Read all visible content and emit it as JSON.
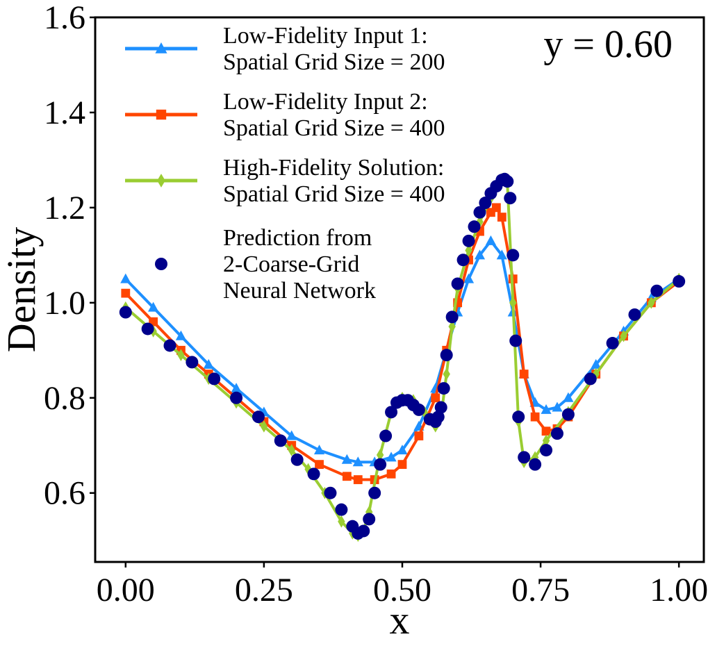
{
  "chart_data": {
    "type": "line",
    "xlabel": "x",
    "ylabel": "Density",
    "xlim": [
      -0.055,
      1.045
    ],
    "ylim": [
      0.455,
      1.6
    ],
    "xticks": [
      0.0,
      0.25,
      0.5,
      0.75,
      1.0
    ],
    "xtick_labels": [
      "0.00",
      "0.25",
      "0.50",
      "0.75",
      "1.00"
    ],
    "yticks": [
      0.6,
      0.8,
      1.0,
      1.2,
      1.4,
      1.6
    ],
    "ytick_labels": [
      "0.6",
      "0.8",
      "1.0",
      "1.2",
      "1.4",
      "1.6"
    ],
    "annotation": "y = 0.60",
    "grid": false,
    "legend_position": "upper-left",
    "series": [
      {
        "name": "Low-Fidelity Input 1:\nSpatial Grid Size = 200",
        "legend_lines": [
          "Low-Fidelity Input 1:",
          "Spatial Grid Size = 200"
        ],
        "color": "#1E90FF",
        "marker": "triangle",
        "x": [
          0.0,
          0.05,
          0.1,
          0.15,
          0.2,
          0.25,
          0.3,
          0.35,
          0.4,
          0.42,
          0.45,
          0.48,
          0.5,
          0.53,
          0.56,
          0.58,
          0.6,
          0.62,
          0.64,
          0.66,
          0.68,
          0.7,
          0.72,
          0.74,
          0.76,
          0.78,
          0.8,
          0.85,
          0.9,
          0.95,
          1.0
        ],
        "y": [
          1.05,
          0.99,
          0.93,
          0.87,
          0.82,
          0.77,
          0.72,
          0.69,
          0.67,
          0.665,
          0.665,
          0.675,
          0.69,
          0.74,
          0.82,
          0.9,
          0.98,
          1.05,
          1.1,
          1.13,
          1.1,
          0.98,
          0.85,
          0.79,
          0.775,
          0.78,
          0.8,
          0.87,
          0.94,
          1.01,
          1.05
        ]
      },
      {
        "name": "Low-Fidelity Input 2:\nSpatial Grid Size = 400",
        "legend_lines": [
          "Low-Fidelity Input 2:",
          "Spatial Grid Size = 400"
        ],
        "color": "#FF4500",
        "marker": "square",
        "x": [
          0.0,
          0.05,
          0.1,
          0.15,
          0.2,
          0.25,
          0.3,
          0.35,
          0.4,
          0.42,
          0.45,
          0.48,
          0.5,
          0.53,
          0.56,
          0.58,
          0.6,
          0.62,
          0.64,
          0.66,
          0.67,
          0.68,
          0.7,
          0.72,
          0.74,
          0.76,
          0.78,
          0.8,
          0.85,
          0.9,
          0.95,
          1.0
        ],
        "y": [
          1.02,
          0.96,
          0.9,
          0.85,
          0.8,
          0.75,
          0.7,
          0.66,
          0.635,
          0.628,
          0.628,
          0.64,
          0.66,
          0.72,
          0.8,
          0.9,
          1.0,
          1.09,
          1.15,
          1.19,
          1.2,
          1.18,
          1.05,
          0.85,
          0.76,
          0.73,
          0.735,
          0.76,
          0.85,
          0.93,
          1.0,
          1.045
        ]
      },
      {
        "name": "High-Fidelity Solution:\nSpatial Grid Size = 400",
        "legend_lines": [
          "High-Fidelity Solution:",
          "Spatial Grid Size = 400"
        ],
        "color": "#9ACD32",
        "marker": "diamond",
        "x": [
          0.0,
          0.05,
          0.1,
          0.15,
          0.2,
          0.25,
          0.3,
          0.33,
          0.36,
          0.39,
          0.41,
          0.42,
          0.43,
          0.44,
          0.46,
          0.48,
          0.5,
          0.52,
          0.54,
          0.56,
          0.57,
          0.58,
          0.59,
          0.6,
          0.62,
          0.64,
          0.66,
          0.68,
          0.69,
          0.7,
          0.71,
          0.72,
          0.74,
          0.76,
          0.8,
          0.85,
          0.9,
          0.95,
          1.0
        ],
        "y": [
          0.99,
          0.94,
          0.89,
          0.84,
          0.79,
          0.74,
          0.69,
          0.65,
          0.6,
          0.54,
          0.515,
          0.51,
          0.52,
          0.56,
          0.68,
          0.77,
          0.8,
          0.795,
          0.77,
          0.74,
          0.76,
          0.85,
          0.95,
          1.03,
          1.11,
          1.17,
          1.22,
          1.26,
          1.25,
          1.0,
          0.75,
          0.665,
          0.675,
          0.71,
          0.77,
          0.85,
          0.93,
          1.0,
          1.05
        ]
      },
      {
        "name": "Prediction from\n2-Coarse-Grid\nNeural Network",
        "legend_lines": [
          "Prediction from",
          "2-Coarse-Grid",
          "Neural Network"
        ],
        "color": "#00008B",
        "marker": "circle",
        "x": [
          0.0,
          0.04,
          0.08,
          0.12,
          0.16,
          0.2,
          0.24,
          0.28,
          0.31,
          0.34,
          0.37,
          0.39,
          0.41,
          0.42,
          0.43,
          0.44,
          0.45,
          0.46,
          0.47,
          0.48,
          0.49,
          0.5,
          0.51,
          0.52,
          0.53,
          0.55,
          0.56,
          0.565,
          0.57,
          0.575,
          0.58,
          0.59,
          0.6,
          0.61,
          0.62,
          0.63,
          0.64,
          0.65,
          0.66,
          0.67,
          0.68,
          0.685,
          0.69,
          0.695,
          0.7,
          0.705,
          0.71,
          0.72,
          0.74,
          0.76,
          0.78,
          0.8,
          0.84,
          0.88,
          0.92,
          0.96,
          1.0
        ],
        "y": [
          0.98,
          0.945,
          0.91,
          0.875,
          0.84,
          0.8,
          0.76,
          0.71,
          0.67,
          0.64,
          0.6,
          0.565,
          0.53,
          0.515,
          0.52,
          0.545,
          0.6,
          0.66,
          0.72,
          0.77,
          0.79,
          0.795,
          0.795,
          0.785,
          0.775,
          0.755,
          0.75,
          0.76,
          0.78,
          0.82,
          0.89,
          0.97,
          1.04,
          1.09,
          1.13,
          1.16,
          1.19,
          1.21,
          1.23,
          1.245,
          1.258,
          1.26,
          1.255,
          1.22,
          1.1,
          0.92,
          0.76,
          0.675,
          0.66,
          0.69,
          0.725,
          0.765,
          0.84,
          0.915,
          0.975,
          1.025,
          1.045
        ]
      }
    ]
  }
}
